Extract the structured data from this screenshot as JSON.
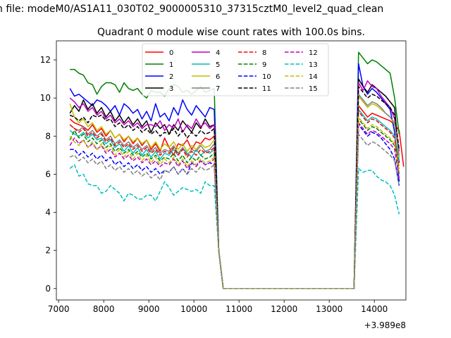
{
  "figure": {
    "suptitle": "n file: modeM0/AS1A11_030T02_9000005310_37315cztM0_level2_quad_clean",
    "title": "Quadrant 0 module wise count rates with 100.0s bins."
  },
  "chart_data": {
    "type": "line",
    "title": "Quadrant 0 module wise count rates with 100.0s bins.",
    "xlabel": "",
    "ylabel": "",
    "x_offset_label": "+3.989e8",
    "xlim": [
      6950,
      14700
    ],
    "ylim": [
      -0.6,
      13.0
    ],
    "xticks": [
      7000,
      8000,
      9000,
      10000,
      11000,
      12000,
      13000,
      14000
    ],
    "yticks": [
      0,
      2,
      4,
      6,
      8,
      10,
      12
    ],
    "grid": false,
    "legend_position": "top-center",
    "legend_columns": 4,
    "x_start": 7250,
    "x_step": 100,
    "series": [
      {
        "name": "0",
        "color": "#ff0000",
        "dash": "solid",
        "values": [
          8.9,
          8.7,
          8.6,
          8.5,
          8.3,
          8.6,
          8.2,
          8.4,
          8.0,
          8.3,
          7.9,
          8.1,
          7.7,
          8.0,
          7.6,
          7.9,
          7.5,
          7.8,
          7.3,
          7.6,
          7.2,
          7.9,
          7.4,
          7.0,
          7.6,
          7.5,
          7.8,
          7.3,
          7.7,
          7.6,
          7.9,
          7.8,
          8.0,
          2.0,
          0,
          0,
          0,
          0,
          0,
          0,
          0,
          0,
          0,
          0,
          0,
          0,
          0,
          0,
          0,
          0,
          0,
          0,
          0,
          0,
          0,
          0,
          0,
          0,
          0,
          0,
          0,
          0,
          0,
          0,
          9.6,
          9.3,
          9.0,
          9.2,
          9.1,
          9.0,
          8.9,
          8.8,
          8.6,
          8.3,
          6.4
        ]
      },
      {
        "name": "1",
        "color": "#008000",
        "dash": "solid",
        "values": [
          11.5,
          11.5,
          11.3,
          11.2,
          10.8,
          10.7,
          10.2,
          10.6,
          10.8,
          10.8,
          10.7,
          10.3,
          10.8,
          10.5,
          10.4,
          10.5,
          10.2,
          10.0,
          10.4,
          10.3,
          10.3,
          10.1,
          10.5,
          10.7,
          10.6,
          10.3,
          10.4,
          10.2,
          10.4,
          10.6,
          10.3,
          10.4,
          10.5,
          2.0,
          0,
          0,
          0,
          0,
          0,
          0,
          0,
          0,
          0,
          0,
          0,
          0,
          0,
          0,
          0,
          0,
          0,
          0,
          0,
          0,
          0,
          0,
          0,
          0,
          0,
          0,
          0,
          0,
          0,
          0,
          12.4,
          12.1,
          11.8,
          12.0,
          11.9,
          11.7,
          11.5,
          11.3,
          10.0,
          8.1
        ]
      },
      {
        "name": "2",
        "color": "#0000ff",
        "dash": "solid",
        "values": [
          10.5,
          10.1,
          10.2,
          10.0,
          9.8,
          9.6,
          9.9,
          9.8,
          9.6,
          9.3,
          9.6,
          9.1,
          9.7,
          9.5,
          9.2,
          9.4,
          8.9,
          9.3,
          8.8,
          9.7,
          9.0,
          9.2,
          8.8,
          9.5,
          9.1,
          9.9,
          9.4,
          9.1,
          9.6,
          9.3,
          9.0,
          9.5,
          9.4,
          2.0,
          0,
          0,
          0,
          0,
          0,
          0,
          0,
          0,
          0,
          0,
          0,
          0,
          0,
          0,
          0,
          0,
          0,
          0,
          0,
          0,
          0,
          0,
          0,
          0,
          0,
          0,
          0,
          0,
          0,
          0,
          11.8,
          10.6,
          10.2,
          10.5,
          10.3,
          10.0,
          9.7,
          9.4,
          8.2,
          5.6
        ]
      },
      {
        "name": "3",
        "color": "#000000",
        "dash": "solid",
        "values": [
          9.2,
          9.6,
          9.3,
          9.9,
          9.4,
          9.7,
          9.2,
          9.5,
          9.0,
          9.3,
          8.8,
          9.1,
          8.7,
          9.0,
          8.6,
          8.9,
          8.5,
          8.8,
          8.2,
          8.7,
          8.4,
          8.6,
          8.1,
          8.6,
          8.3,
          8.8,
          8.5,
          8.2,
          8.7,
          8.4,
          8.9,
          8.5,
          8.6,
          2.0,
          0,
          0,
          0,
          0,
          0,
          0,
          0,
          0,
          0,
          0,
          0,
          0,
          0,
          0,
          0,
          0,
          0,
          0,
          0,
          0,
          0,
          0,
          0,
          0,
          0,
          0,
          0,
          0,
          0,
          0,
          11.0,
          10.6,
          10.3,
          10.7,
          10.5,
          10.3,
          10.1,
          9.8,
          9.5,
          6.6
        ]
      },
      {
        "name": "4",
        "color": "#bf00bf",
        "dash": "solid",
        "values": [
          10.0,
          9.8,
          9.5,
          9.7,
          9.3,
          9.5,
          9.1,
          9.3,
          8.9,
          9.1,
          8.7,
          8.9,
          8.6,
          8.8,
          8.5,
          8.7,
          8.4,
          8.6,
          8.6,
          8.5,
          8.8,
          8.3,
          8.6,
          8.4,
          8.9,
          8.2,
          8.6,
          8.4,
          8.9,
          8.5,
          8.7,
          8.4,
          8.6,
          2.0,
          0,
          0,
          0,
          0,
          0,
          0,
          0,
          0,
          0,
          0,
          0,
          0,
          0,
          0,
          0,
          0,
          0,
          0,
          0,
          0,
          0,
          0,
          0,
          0,
          0,
          0,
          0,
          0,
          0,
          0,
          10.8,
          10.4,
          10.9,
          10.6,
          10.5,
          10.1,
          9.8,
          9.5,
          8.9,
          7.2
        ]
      },
      {
        "name": "5",
        "color": "#00bfbf",
        "dash": "solid",
        "values": [
          8.3,
          8.1,
          8.0,
          8.2,
          7.9,
          8.1,
          7.8,
          7.9,
          7.6,
          7.8,
          7.4,
          7.6,
          7.2,
          7.5,
          7.1,
          7.4,
          7.0,
          7.3,
          6.9,
          7.2,
          6.8,
          7.1,
          7.0,
          7.3,
          7.0,
          7.4,
          7.1,
          6.9,
          7.3,
          7.0,
          7.2,
          7.1,
          7.3,
          2.0,
          0,
          0,
          0,
          0,
          0,
          0,
          0,
          0,
          0,
          0,
          0,
          0,
          0,
          0,
          0,
          0,
          0,
          0,
          0,
          0,
          0,
          0,
          0,
          0,
          0,
          0,
          0,
          0,
          0,
          0,
          9.4,
          9.1,
          8.8,
          9.0,
          8.9,
          8.7,
          8.5,
          8.3,
          8.0,
          6.7
        ]
      },
      {
        "name": "6",
        "color": "#bfbf00",
        "dash": "solid",
        "values": [
          9.7,
          9.0,
          8.7,
          8.9,
          8.5,
          8.7,
          8.3,
          8.5,
          8.1,
          8.3,
          7.9,
          8.1,
          7.8,
          8.0,
          7.7,
          7.9,
          7.6,
          7.8,
          7.4,
          7.7,
          7.3,
          7.6,
          7.4,
          7.7,
          7.3,
          7.6,
          7.2,
          7.5,
          7.3,
          7.6,
          7.4,
          7.5,
          7.8,
          2.0,
          0,
          0,
          0,
          0,
          0,
          0,
          0,
          0,
          0,
          0,
          0,
          0,
          0,
          0,
          0,
          0,
          0,
          0,
          0,
          0,
          0,
          0,
          0,
          0,
          0,
          0,
          0,
          0,
          0,
          0,
          10.1,
          9.8,
          9.5,
          9.7,
          9.6,
          9.4,
          9.2,
          9.0,
          8.6,
          6.9
        ]
      },
      {
        "name": "7",
        "color": "#808080",
        "dash": "solid",
        "values": [
          8.6,
          8.4,
          8.3,
          8.5,
          8.1,
          8.3,
          8.0,
          8.2,
          7.8,
          8.0,
          7.6,
          7.8,
          7.5,
          7.7,
          7.4,
          7.6,
          7.3,
          7.5,
          7.2,
          7.4,
          7.1,
          7.3,
          7.2,
          7.5,
          7.1,
          7.4,
          7.0,
          7.3,
          7.2,
          7.5,
          7.2,
          7.3,
          7.6,
          2.0,
          0,
          0,
          0,
          0,
          0,
          0,
          0,
          0,
          0,
          0,
          0,
          0,
          0,
          0,
          0,
          0,
          0,
          0,
          0,
          0,
          0,
          0,
          0,
          0,
          0,
          0,
          0,
          0,
          0,
          0,
          10.2,
          9.9,
          9.6,
          9.8,
          9.7,
          9.5,
          9.2,
          9.0,
          8.7,
          7.0
        ]
      },
      {
        "name": "8",
        "color": "#ff0000",
        "dash": "dashed",
        "values": [
          8.6,
          8.4,
          8.2,
          8.4,
          8.0,
          8.2,
          7.9,
          8.1,
          7.7,
          7.9,
          7.5,
          7.7,
          7.4,
          7.6,
          7.3,
          7.5,
          7.2,
          7.4,
          7.1,
          7.3,
          7.0,
          7.2,
          7.1,
          7.4,
          7.0,
          7.3,
          6.9,
          7.2,
          7.0,
          7.3,
          7.1,
          7.2,
          7.4,
          2.0,
          0,
          0,
          0,
          0,
          0,
          0,
          0,
          0,
          0,
          0,
          0,
          0,
          0,
          0,
          0,
          0,
          0,
          0,
          0,
          0,
          0,
          0,
          0,
          0,
          0,
          0,
          0,
          0,
          0,
          0,
          9.3,
          9.0,
          8.7,
          8.9,
          8.8,
          8.6,
          8.4,
          8.2,
          7.9,
          6.3
        ]
      },
      {
        "name": "9",
        "color": "#008000",
        "dash": "dashed",
        "values": [
          7.8,
          8.3,
          7.9,
          8.1,
          7.7,
          7.9,
          7.6,
          7.8,
          7.4,
          7.6,
          7.2,
          7.4,
          7.1,
          7.3,
          7.0,
          7.2,
          6.9,
          7.1,
          6.8,
          7.0,
          6.7,
          6.9,
          6.8,
          7.1,
          6.7,
          7.0,
          6.6,
          6.9,
          6.7,
          7.0,
          6.8,
          6.9,
          7.1,
          2.0,
          0,
          0,
          0,
          0,
          0,
          0,
          0,
          0,
          0,
          0,
          0,
          0,
          0,
          0,
          0,
          0,
          0,
          0,
          0,
          0,
          0,
          0,
          0,
          0,
          0,
          0,
          0,
          0,
          0,
          0,
          8.9,
          8.6,
          8.3,
          8.5,
          8.4,
          8.2,
          8.0,
          7.8,
          7.5,
          6.0
        ]
      },
      {
        "name": "10",
        "color": "#0000ff",
        "dash": "dashed",
        "values": [
          7.3,
          7.3,
          7.0,
          7.2,
          6.9,
          7.1,
          6.8,
          7.0,
          6.7,
          6.9,
          6.5,
          6.7,
          6.4,
          6.6,
          6.3,
          6.5,
          6.2,
          6.4,
          6.1,
          6.3,
          6.0,
          6.2,
          6.1,
          6.4,
          6.0,
          6.3,
          6.0,
          6.6,
          6.5,
          6.7,
          6.5,
          6.6,
          6.5,
          2.0,
          0,
          0,
          0,
          0,
          0,
          0,
          0,
          0,
          0,
          0,
          0,
          0,
          0,
          0,
          0,
          0,
          0,
          0,
          0,
          0,
          0,
          0,
          0,
          0,
          0,
          0,
          0,
          0,
          0,
          0,
          8.6,
          8.3,
          8.0,
          8.2,
          8.1,
          7.9,
          7.6,
          7.3,
          6.8,
          5.4
        ]
      },
      {
        "name": "11",
        "color": "#000000",
        "dash": "dashed",
        "values": [
          9.1,
          9.0,
          8.8,
          9.0,
          8.7,
          9.1,
          9.0,
          9.1,
          8.8,
          8.9,
          8.5,
          8.7,
          8.4,
          8.6,
          8.3,
          8.5,
          8.2,
          8.4,
          8.1,
          8.3,
          8.0,
          8.2,
          8.1,
          8.4,
          8.0,
          8.3,
          7.9,
          8.2,
          8.0,
          8.3,
          8.1,
          8.2,
          8.4,
          2.0,
          0,
          0,
          0,
          0,
          0,
          0,
          0,
          0,
          0,
          0,
          0,
          0,
          0,
          0,
          0,
          0,
          0,
          0,
          0,
          0,
          0,
          0,
          0,
          0,
          0,
          0,
          0,
          0,
          0,
          0,
          10.6,
          10.3,
          10.0,
          10.2,
          10.1,
          9.9,
          9.7,
          9.5,
          9.1,
          7.3
        ]
      },
      {
        "name": "12",
        "color": "#bf00bf",
        "dash": "dashed",
        "values": [
          7.5,
          7.9,
          7.6,
          7.8,
          7.4,
          7.6,
          7.3,
          7.5,
          7.1,
          7.3,
          6.9,
          7.1,
          6.8,
          7.0,
          6.7,
          6.9,
          6.6,
          6.8,
          6.5,
          6.7,
          6.4,
          6.6,
          6.5,
          6.8,
          6.4,
          6.7,
          6.3,
          6.6,
          6.4,
          6.7,
          6.5,
          6.6,
          6.8,
          2.0,
          0,
          0,
          0,
          0,
          0,
          0,
          0,
          0,
          0,
          0,
          0,
          0,
          0,
          0,
          0,
          0,
          0,
          0,
          0,
          0,
          0,
          0,
          0,
          0,
          0,
          0,
          0,
          0,
          0,
          0,
          8.7,
          8.4,
          8.1,
          8.3,
          8.2,
          8.0,
          7.8,
          7.6,
          7.3,
          5.8
        ]
      },
      {
        "name": "13",
        "color": "#00bfbf",
        "dash": "dashed",
        "values": [
          6.3,
          6.5,
          5.9,
          6.0,
          5.5,
          5.4,
          5.4,
          5.0,
          5.1,
          5.4,
          5.2,
          5.0,
          4.6,
          5.0,
          4.9,
          4.7,
          4.7,
          4.9,
          4.9,
          4.6,
          5.1,
          5.6,
          5.3,
          4.9,
          5.1,
          5.3,
          5.2,
          5.1,
          5.2,
          5.0,
          5.6,
          5.4,
          5.4,
          2.0,
          0,
          0,
          0,
          0,
          0,
          0,
          0,
          0,
          0,
          0,
          0,
          0,
          0,
          0,
          0,
          0,
          0,
          0,
          0,
          0,
          0,
          0,
          0,
          0,
          0,
          0,
          0,
          0,
          0,
          0,
          6.3,
          6.1,
          6.2,
          6.2,
          5.9,
          5.7,
          5.6,
          5.4,
          4.9,
          3.9
        ]
      },
      {
        "name": "14",
        "color": "#bfbf00",
        "dash": "dashed",
        "values": [
          8.0,
          7.7,
          7.5,
          7.8,
          7.4,
          7.7,
          7.3,
          7.6,
          7.2,
          7.5,
          7.0,
          7.3,
          6.9,
          7.2,
          6.8,
          7.1,
          6.7,
          7.0,
          6.6,
          6.9,
          6.5,
          6.8,
          6.6,
          6.9,
          6.5,
          6.8,
          6.4,
          6.7,
          6.5,
          6.8,
          6.6,
          6.7,
          6.9,
          2.0,
          0,
          0,
          0,
          0,
          0,
          0,
          0,
          0,
          0,
          0,
          0,
          0,
          0,
          0,
          0,
          0,
          0,
          0,
          0,
          0,
          0,
          0,
          0,
          0,
          0,
          0,
          0,
          0,
          0,
          0,
          9.0,
          8.7,
          8.4,
          8.6,
          8.5,
          8.3,
          8.1,
          7.9,
          7.6,
          6.1
        ]
      },
      {
        "name": "15",
        "color": "#808080",
        "dash": "dashed",
        "values": [
          6.9,
          7.0,
          6.7,
          6.9,
          6.6,
          6.8,
          6.5,
          6.7,
          6.3,
          6.5,
          6.2,
          6.4,
          6.1,
          6.3,
          6.0,
          6.2,
          5.9,
          6.1,
          5.8,
          6.0,
          5.7,
          6.2,
          6.1,
          6.4,
          6.0,
          6.3,
          6.0,
          6.3,
          6.1,
          6.4,
          6.2,
          6.3,
          6.5,
          2.0,
          0,
          0,
          0,
          0,
          0,
          0,
          0,
          0,
          0,
          0,
          0,
          0,
          0,
          0,
          0,
          0,
          0,
          0,
          0,
          0,
          0,
          0,
          0,
          0,
          0,
          0,
          0,
          0,
          0,
          0,
          8.1,
          7.8,
          7.5,
          7.7,
          7.6,
          7.4,
          7.2,
          7.0,
          6.7,
          5.4
        ]
      }
    ]
  }
}
